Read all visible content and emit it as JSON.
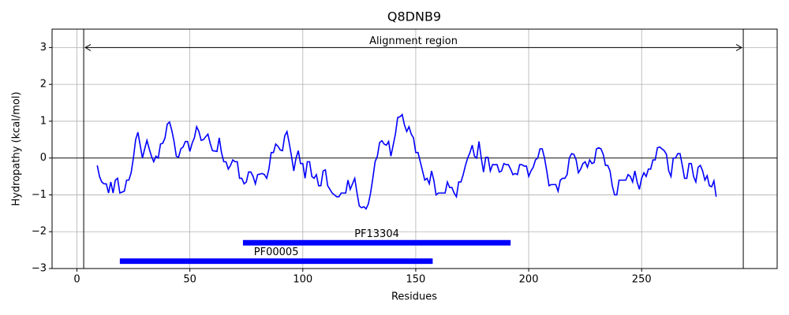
{
  "chart_data": {
    "type": "line",
    "title": "Q8DNB9",
    "xlabel": "Residues",
    "ylabel": "Hydropathy (kcal/mol)",
    "color": "#0000ff",
    "grid": true,
    "xlim": [
      -11,
      310
    ],
    "ylim": [
      -3,
      3.5
    ],
    "xticks": [
      0,
      50,
      100,
      150,
      200,
      250
    ],
    "yticks": [
      {
        "value": -3,
        "label": "−3"
      },
      {
        "value": -2,
        "label": "−2"
      },
      {
        "value": -1,
        "label": "−1"
      },
      0,
      1,
      2,
      3
    ],
    "x": [
      9,
      10,
      11,
      12,
      13,
      14,
      15,
      16,
      17,
      18,
      19,
      21,
      22,
      23,
      24,
      25,
      26,
      27,
      28,
      29,
      30,
      31,
      32,
      33,
      34,
      35,
      36,
      37,
      38,
      39,
      40,
      41,
      42,
      43,
      44,
      45,
      46,
      47,
      48,
      49,
      50,
      51,
      52,
      53,
      54,
      55,
      56,
      57,
      58,
      59,
      60,
      62,
      63,
      64,
      65,
      66,
      67,
      68,
      69,
      70,
      71,
      72,
      73,
      74,
      75,
      76,
      77,
      78,
      79,
      80,
      82,
      83,
      84,
      85,
      86,
      87,
      88,
      89,
      90,
      91,
      92,
      93,
      94,
      95,
      96,
      97,
      98,
      99,
      100,
      101,
      102,
      103,
      104,
      105,
      106,
      107,
      108,
      109,
      110,
      111,
      112,
      113,
      114,
      115,
      116,
      117,
      118,
      119,
      120,
      121,
      122,
      123,
      124,
      125,
      126,
      127,
      128,
      129,
      130,
      131,
      132,
      133,
      134,
      135,
      136,
      137,
      138,
      139,
      140,
      141,
      142,
      143,
      144,
      145,
      146,
      147,
      148,
      149,
      150,
      151,
      152,
      153,
      154,
      155,
      156,
      157,
      158,
      159,
      160,
      161,
      163,
      164,
      165,
      166,
      167,
      168,
      169,
      170,
      171,
      172,
      173,
      174,
      175,
      176,
      177,
      178,
      179,
      180,
      181,
      182,
      183,
      184,
      185,
      186,
      187,
      188,
      189,
      190,
      191,
      192,
      193,
      194,
      195,
      196,
      197,
      198,
      199,
      200,
      201,
      202,
      203,
      204,
      205,
      206,
      207,
      208,
      209,
      210,
      211,
      212,
      213,
      214,
      215,
      216,
      217,
      218,
      219,
      220,
      221,
      222,
      223,
      224,
      225,
      226,
      227,
      228,
      229,
      230,
      231,
      232,
      233,
      234,
      235,
      236,
      237,
      238,
      239,
      240,
      241,
      242,
      243,
      244,
      245,
      246,
      247,
      248,
      249,
      250,
      251,
      252,
      253,
      254,
      255,
      256,
      257,
      258,
      259,
      260,
      261,
      262,
      263,
      264,
      265,
      266,
      267,
      268,
      269,
      270,
      271,
      272,
      273,
      274,
      275,
      276,
      277,
      278,
      279,
      280,
      281,
      282,
      283
    ],
    "values": [
      -0.2,
      -0.5,
      -0.65,
      -0.7,
      -0.7,
      -0.95,
      -0.65,
      -0.95,
      -0.6,
      -0.55,
      -0.95,
      -0.9,
      -0.6,
      -0.6,
      -0.4,
      0,
      0.5,
      0.7,
      0.35,
      0,
      0.25,
      0.48,
      0.25,
      0.05,
      -0.1,
      0.05,
      0,
      0.38,
      0.4,
      0.55,
      0.92,
      0.98,
      0.75,
      0.45,
      0.05,
      0.02,
      0.25,
      0.3,
      0.45,
      0.45,
      0.18,
      0.4,
      0.55,
      0.85,
      0.72,
      0.48,
      0.5,
      0.58,
      0.65,
      0.4,
      0.2,
      0.18,
      0.55,
      0.15,
      -0.1,
      -0.1,
      -0.3,
      -0.2,
      -0.05,
      -0.1,
      -0.1,
      -0.55,
      -0.55,
      -0.7,
      -0.65,
      -0.38,
      -0.38,
      -0.5,
      -0.7,
      -0.45,
      -0.42,
      -0.45,
      -0.55,
      -0.3,
      0.15,
      0.15,
      0.38,
      0.32,
      0.22,
      0.2,
      0.6,
      0.72,
      0.4,
      0.05,
      -0.35,
      0,
      0.2,
      -0.15,
      -0.15,
      -0.55,
      -0.1,
      -0.1,
      -0.5,
      -0.55,
      -0.45,
      -0.75,
      -0.75,
      -0.35,
      -0.32,
      -0.75,
      -0.85,
      -0.95,
      -1,
      -1.05,
      -1.05,
      -0.95,
      -0.95,
      -0.95,
      -0.6,
      -0.85,
      -0.7,
      -0.55,
      -0.95,
      -1.3,
      -1.35,
      -1.32,
      -1.38,
      -1.25,
      -0.95,
      -0.55,
      -0.1,
      0.05,
      0.42,
      0.47,
      0.38,
      0.35,
      0.45,
      0.05,
      0.35,
      0.65,
      1.1,
      1.12,
      1.18,
      0.9,
      0.72,
      0.85,
      0.65,
      0.55,
      0.15,
      0.15,
      -0.1,
      -0.35,
      -0.6,
      -0.55,
      -0.7,
      -0.35,
      -0.6,
      -1,
      -0.95,
      -0.95,
      -0.95,
      -0.65,
      -0.8,
      -0.8,
      -0.95,
      -1.05,
      -0.65,
      -0.65,
      -0.45,
      -0.2,
      0,
      0.15,
      0.35,
      0.05,
      0,
      0.45,
      0,
      -0.38,
      0.02,
      0.02,
      -0.35,
      -0.18,
      -0.18,
      -0.18,
      -0.38,
      -0.35,
      -0.15,
      -0.18,
      -0.18,
      -0.3,
      -0.45,
      -0.42,
      -0.45,
      -0.18,
      -0.18,
      -0.22,
      -0.22,
      -0.5,
      -0.35,
      -0.25,
      -0.05,
      0,
      0.25,
      0.25,
      0,
      -0.35,
      -0.75,
      -0.72,
      -0.72,
      -0.72,
      -0.9,
      -0.6,
      -0.55,
      -0.55,
      -0.45,
      0,
      0.12,
      0.1,
      -0.05,
      -0.4,
      -0.3,
      -0.15,
      -0.1,
      -0.25,
      -0.05,
      -0.15,
      -0.12,
      0.25,
      0.28,
      0.25,
      0.1,
      -0.2,
      -0.2,
      -0.35,
      -0.75,
      -1,
      -1,
      -0.6,
      -0.6,
      -0.6,
      -0.6,
      -0.45,
      -0.5,
      -0.65,
      -0.35,
      -0.65,
      -0.85,
      -0.55,
      -0.4,
      -0.5,
      -0.3,
      -0.3,
      -0.05,
      -0.05,
      0.28,
      0.3,
      0.25,
      0.2,
      0.1,
      -0.35,
      -0.5,
      0,
      0,
      0.12,
      0.12,
      -0.2,
      -0.55,
      -0.55,
      -0.15,
      -0.15,
      -0.5,
      -0.65,
      -0.25,
      -0.2,
      -0.35,
      -0.6,
      -0.48,
      -0.75,
      -0.78,
      -0.62,
      -1.05
    ],
    "alignment": {
      "label": "Alignment region",
      "start": 3,
      "end": 295,
      "y": 3
    },
    "regions": [
      {
        "name": "PF13304",
        "start": 73.5,
        "end": 192,
        "y": -2.3,
        "color": "#0000ff"
      },
      {
        "name": "PF00005",
        "start": 19,
        "end": 157.5,
        "y": -2.8,
        "color": "#0000ff"
      }
    ]
  }
}
